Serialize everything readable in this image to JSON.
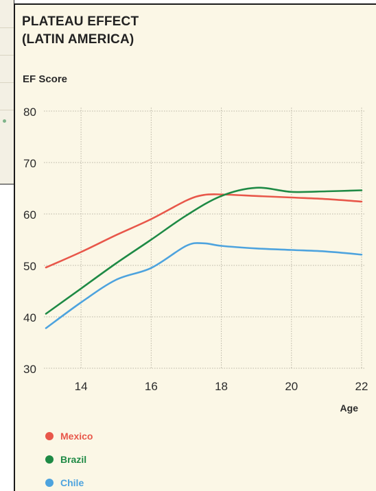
{
  "chart_data": {
    "type": "line",
    "title_lines": [
      "PLATEAU EFFECT",
      "(LATIN AMERICA)"
    ],
    "ylabel": "EF Score",
    "xlabel": "Age",
    "ylim": [
      30,
      80
    ],
    "xlim": [
      13,
      22
    ],
    "y_ticks": [
      30,
      40,
      50,
      60,
      70,
      80
    ],
    "x_ticks": [
      14,
      16,
      18,
      20,
      22
    ],
    "grid": true,
    "legend_position": "bottom-left",
    "series": [
      {
        "name": "Mexico",
        "color": "#e8574a",
        "points": [
          [
            13,
            49.6
          ],
          [
            14,
            52.6
          ],
          [
            15,
            55.9
          ],
          [
            16,
            59.0
          ],
          [
            17,
            62.6
          ],
          [
            17.5,
            63.7
          ],
          [
            18,
            63.8
          ],
          [
            19,
            63.5
          ],
          [
            20,
            63.2
          ],
          [
            21,
            62.9
          ],
          [
            22,
            62.4
          ]
        ]
      },
      {
        "name": "Brazil",
        "color": "#1e8a45",
        "points": [
          [
            13,
            40.6
          ],
          [
            14,
            45.5
          ],
          [
            15,
            50.4
          ],
          [
            16,
            55.0
          ],
          [
            17,
            59.7
          ],
          [
            18,
            63.5
          ],
          [
            19,
            65.1
          ],
          [
            20,
            64.3
          ],
          [
            21,
            64.4
          ],
          [
            22,
            64.6
          ]
        ]
      },
      {
        "name": "Chile",
        "color": "#4da3de",
        "points": [
          [
            13,
            37.8
          ],
          [
            14,
            42.8
          ],
          [
            15,
            47.2
          ],
          [
            16,
            49.5
          ],
          [
            17,
            53.8
          ],
          [
            17.5,
            54.3
          ],
          [
            18,
            53.8
          ],
          [
            19,
            53.3
          ],
          [
            20,
            53.0
          ],
          [
            21,
            52.7
          ],
          [
            22,
            52.1
          ]
        ]
      }
    ]
  }
}
